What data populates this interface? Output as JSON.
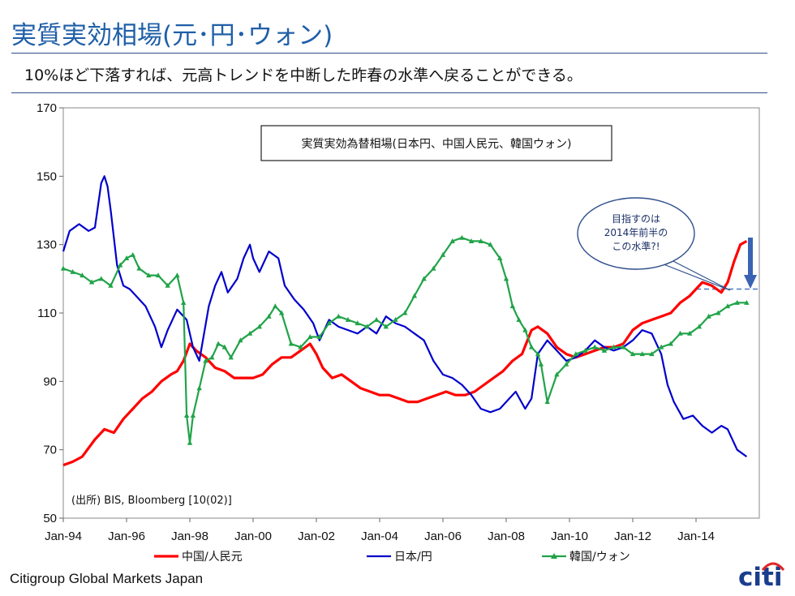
{
  "header": {
    "title": "実質実効相場(元･円･ウォン)",
    "subtitle": "10%ほど下落すれば、元高トレンドを中断した昨春の水準へ戻ることができる。"
  },
  "footer": {
    "source_label": "Citigroup Global Markets Japan",
    "logo_text": "citi"
  },
  "colors": {
    "title": "#1f5fa8",
    "china": "#ff0000",
    "japan": "#0000cc",
    "korea": "#21a349",
    "target_line": "#4a78c2",
    "arrow": "#3a63b3"
  },
  "chart_data": {
    "type": "line",
    "title": "実質実効為替相場(日本円、中国人民元、韓国ウォン)",
    "source_note": "(出所) BIS, Bloomberg  [10(02)]",
    "callout": "目指すのは\n2014年前半の\nこの水準?!",
    "ylim": [
      50,
      170
    ],
    "yticks": [
      50,
      70,
      90,
      110,
      130,
      150,
      170
    ],
    "xlim": [
      1994.0,
      2016.0
    ],
    "xticks": [
      {
        "label": "Jan-94",
        "value": 1994
      },
      {
        "label": "Jan-96",
        "value": 1996
      },
      {
        "label": "Jan-98",
        "value": 1998
      },
      {
        "label": "Jan-00",
        "value": 2000
      },
      {
        "label": "Jan-02",
        "value": 2002
      },
      {
        "label": "Jan-04",
        "value": 2004
      },
      {
        "label": "Jan-06",
        "value": 2006
      },
      {
        "label": "Jan-08",
        "value": 2008
      },
      {
        "label": "Jan-10",
        "value": 2010
      },
      {
        "label": "Jan-12",
        "value": 2012
      },
      {
        "label": "Jan-14",
        "value": 2014
      }
    ],
    "target_level": 117,
    "target_from": 2014.0,
    "series": [
      {
        "name": "中国/人民元",
        "color": "#ff0000",
        "x": [
          1994.0,
          1994.3,
          1994.6,
          1995.0,
          1995.3,
          1995.6,
          1995.9,
          1996.2,
          1996.5,
          1996.8,
          1997.1,
          1997.4,
          1997.6,
          1997.8,
          1998.0,
          1998.2,
          1998.5,
          1998.8,
          1999.1,
          1999.4,
          1999.7,
          2000.0,
          2000.3,
          2000.6,
          2000.9,
          2001.2,
          2001.5,
          2001.8,
          2002.0,
          2002.2,
          2002.5,
          2002.8,
          2003.1,
          2003.4,
          2003.7,
          2004.0,
          2004.3,
          2004.6,
          2004.9,
          2005.2,
          2005.5,
          2005.8,
          2006.1,
          2006.4,
          2006.7,
          2007.0,
          2007.3,
          2007.6,
          2007.9,
          2008.2,
          2008.5,
          2008.8,
          2009.0,
          2009.3,
          2009.6,
          2009.9,
          2010.2,
          2010.5,
          2010.8,
          2011.1,
          2011.4,
          2011.7,
          2012.0,
          2012.3,
          2012.6,
          2012.9,
          2013.2,
          2013.5,
          2013.8,
          2014.0,
          2014.2,
          2014.5,
          2014.8,
          2015.0,
          2015.2,
          2015.4,
          2015.6
        ],
        "values": [
          65.5,
          66.5,
          68,
          73,
          76,
          75,
          79,
          82,
          85,
          87,
          90,
          92,
          93,
          96,
          101,
          99,
          97,
          94,
          93,
          91,
          91,
          91,
          92,
          95,
          97,
          97,
          99,
          101,
          98,
          94,
          91,
          92,
          90,
          88,
          87,
          86,
          86,
          85,
          84,
          84,
          85,
          86,
          87,
          86,
          86,
          87,
          89,
          91,
          93,
          96,
          98,
          105,
          106,
          104,
          100,
          98,
          97,
          98,
          99,
          100,
          100,
          101,
          105,
          107,
          108,
          109,
          110,
          113,
          115,
          117,
          119,
          118,
          116,
          119,
          125,
          130,
          131
        ]
      },
      {
        "name": "日本/円",
        "color": "#0000cc",
        "x": [
          1994.0,
          1994.2,
          1994.5,
          1994.8,
          1995.0,
          1995.2,
          1995.3,
          1995.4,
          1995.5,
          1995.7,
          1995.9,
          1996.1,
          1996.3,
          1996.6,
          1996.9,
          1997.1,
          1997.3,
          1997.6,
          1997.9,
          1998.1,
          1998.3,
          1998.6,
          1998.8,
          1999.0,
          1999.2,
          1999.5,
          1999.7,
          1999.9,
          2000.0,
          2000.2,
          2000.5,
          2000.8,
          2001.0,
          2001.3,
          2001.6,
          2001.9,
          2002.1,
          2002.4,
          2002.7,
          2003.0,
          2003.3,
          2003.6,
          2003.9,
          2004.2,
          2004.5,
          2004.8,
          2005.1,
          2005.4,
          2005.7,
          2006.0,
          2006.3,
          2006.6,
          2006.9,
          2007.2,
          2007.5,
          2007.8,
          2008.0,
          2008.3,
          2008.6,
          2008.8,
          2009.0,
          2009.3,
          2009.6,
          2009.9,
          2010.2,
          2010.5,
          2010.8,
          2011.1,
          2011.4,
          2011.7,
          2012.0,
          2012.3,
          2012.6,
          2012.9,
          2013.1,
          2013.3,
          2013.6,
          2013.9,
          2014.2,
          2014.5,
          2014.8,
          2015.0,
          2015.3,
          2015.6
        ],
        "values": [
          128,
          134,
          136,
          134,
          135,
          148,
          150,
          147,
          140,
          124,
          118,
          117,
          115,
          112,
          106,
          100,
          105,
          111,
          108,
          100,
          96,
          112,
          118,
          122,
          116,
          120,
          126,
          130,
          126,
          122,
          128,
          126,
          118,
          114,
          111,
          107,
          102,
          108,
          106,
          105,
          104,
          106,
          104,
          109,
          107,
          106,
          104,
          102,
          96,
          92,
          91,
          89,
          86,
          82,
          81,
          82,
          84,
          87,
          82,
          85,
          98,
          102,
          99,
          96,
          97,
          99,
          102,
          100,
          99,
          100,
          102,
          105,
          104,
          98,
          89,
          84,
          79,
          80,
          77,
          75,
          77,
          76,
          70,
          68
        ]
      },
      {
        "name": "韓国/ウォン",
        "color": "#21a349",
        "x": [
          1994.0,
          1994.3,
          1994.6,
          1994.9,
          1995.2,
          1995.5,
          1995.8,
          1996.0,
          1996.2,
          1996.4,
          1996.7,
          1997.0,
          1997.3,
          1997.6,
          1997.8,
          1997.9,
          1998.0,
          1998.1,
          1998.3,
          1998.5,
          1998.7,
          1998.9,
          1999.1,
          1999.3,
          1999.6,
          1999.9,
          2000.2,
          2000.5,
          2000.7,
          2000.9,
          2001.2,
          2001.5,
          2001.8,
          2002.1,
          2002.4,
          2002.7,
          2003.0,
          2003.3,
          2003.6,
          2003.9,
          2004.2,
          2004.5,
          2004.8,
          2005.1,
          2005.4,
          2005.7,
          2006.0,
          2006.3,
          2006.6,
          2006.9,
          2007.2,
          2007.5,
          2007.8,
          2008.0,
          2008.2,
          2008.4,
          2008.6,
          2008.8,
          2009.0,
          2009.1,
          2009.3,
          2009.6,
          2009.9,
          2010.2,
          2010.5,
          2010.8,
          2011.1,
          2011.4,
          2011.7,
          2012.0,
          2012.3,
          2012.6,
          2012.9,
          2013.2,
          2013.5,
          2013.8,
          2014.1,
          2014.4,
          2014.7,
          2015.0,
          2015.3,
          2015.6
        ],
        "values": [
          123,
          122,
          121,
          119,
          120,
          118,
          124,
          126,
          127,
          123,
          121,
          121,
          118,
          121,
          113,
          80,
          72,
          80,
          88,
          96,
          97,
          101,
          100,
          97,
          102,
          104,
          106,
          109,
          112,
          110,
          101,
          100,
          103,
          103,
          107,
          109,
          108,
          107,
          106,
          108,
          106,
          108,
          110,
          115,
          120,
          123,
          127,
          131,
          132,
          131,
          131,
          130,
          126,
          120,
          112,
          108,
          105,
          100,
          98,
          95,
          84,
          92,
          95,
          98,
          99,
          100,
          99,
          100,
          100,
          98,
          98,
          98,
          100,
          101,
          104,
          104,
          106,
          109,
          110,
          112,
          113,
          113
        ]
      }
    ]
  }
}
